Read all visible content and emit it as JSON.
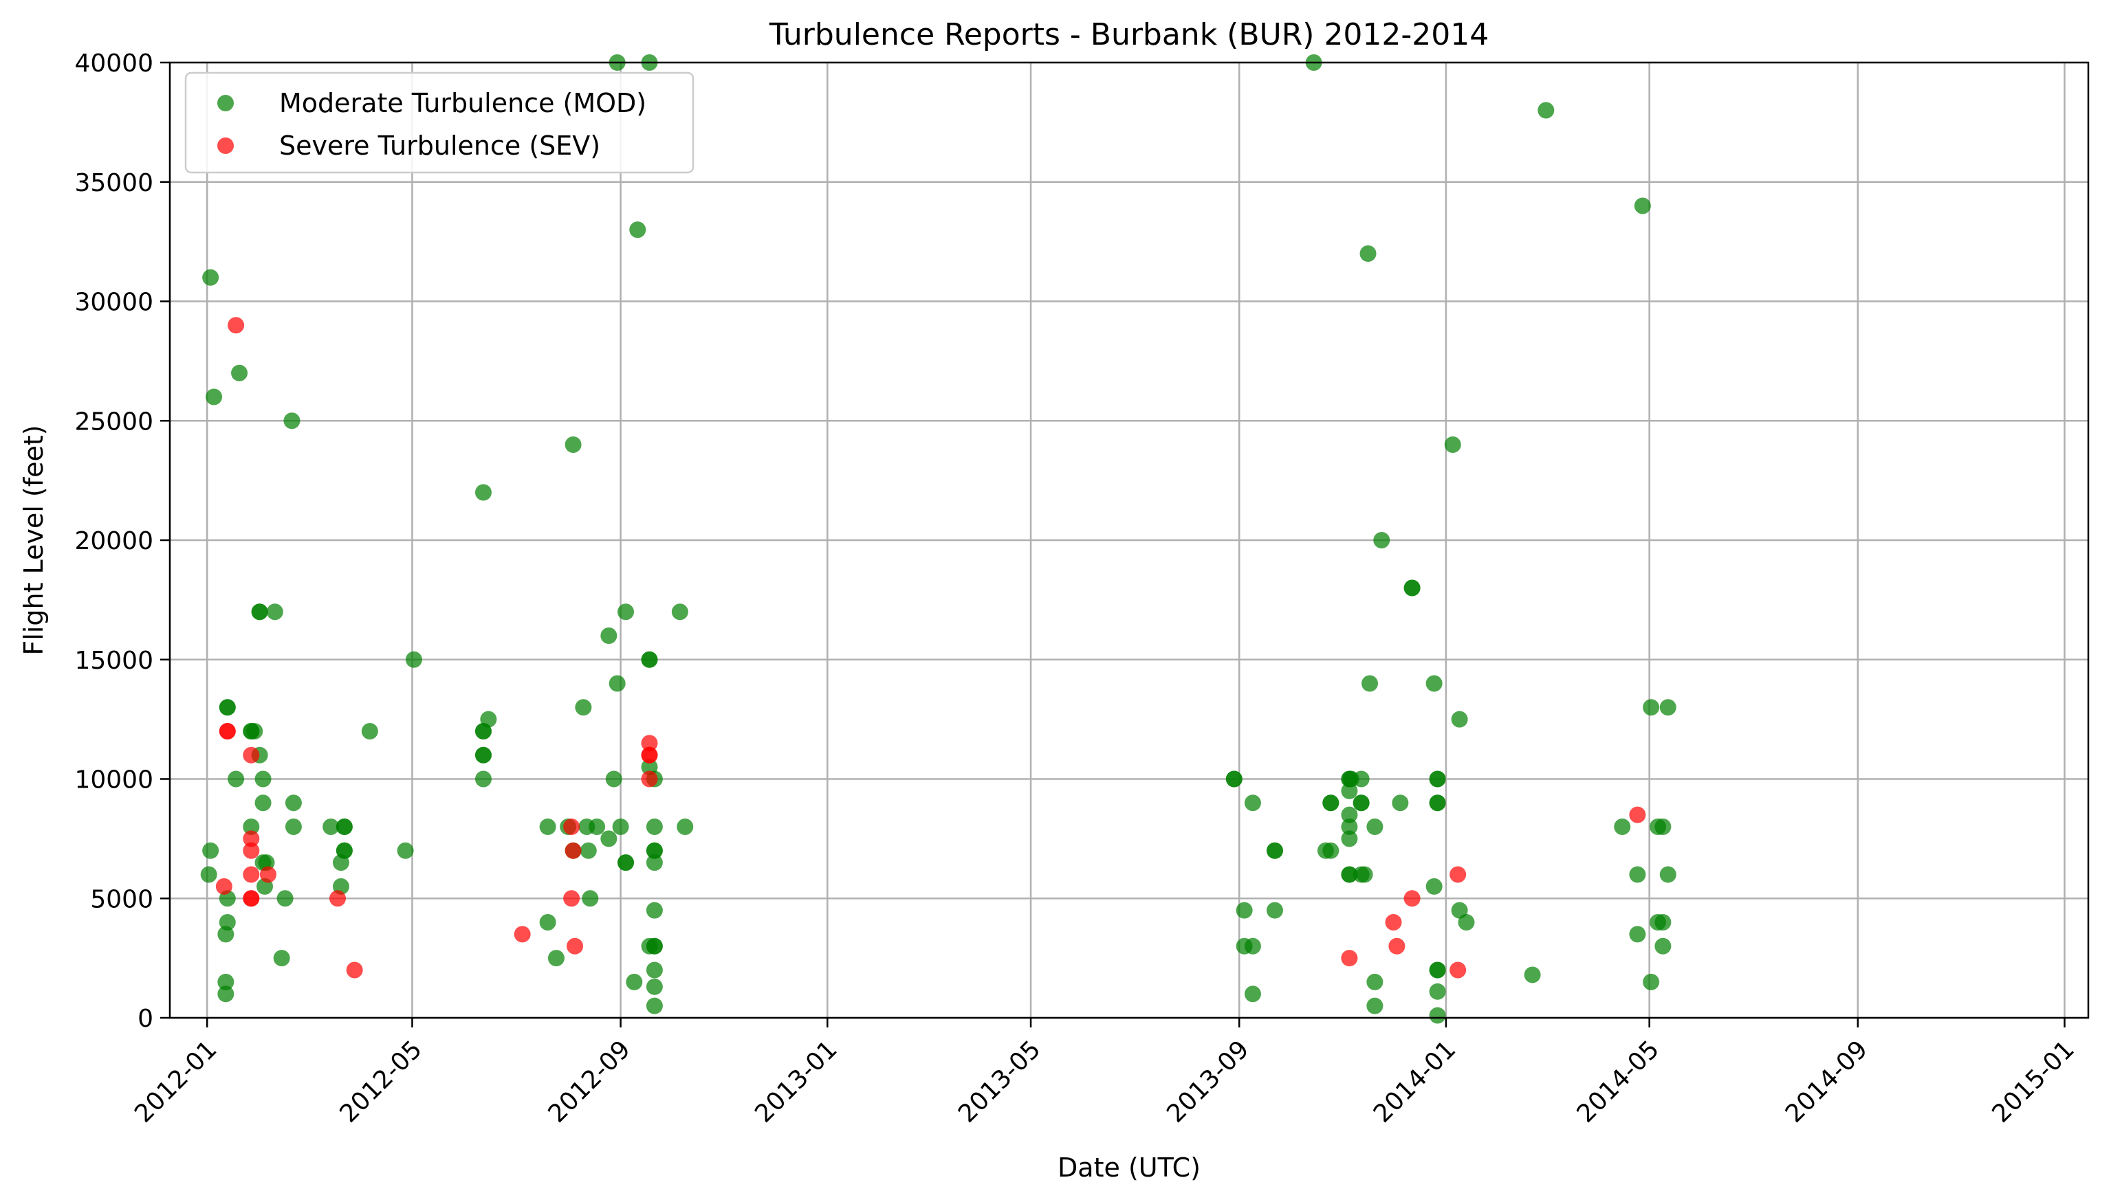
{
  "chart_data": {
    "type": "scatter",
    "title": "Turbulence Reports - Burbank (BUR) 2012-2014",
    "xlabel": "Date (UTC)",
    "ylabel": "Flight Level (feet)",
    "x_type": "date",
    "xlim": [
      "2011-12-10",
      "2015-01-15"
    ],
    "ylim": [
      0,
      40000
    ],
    "grid": true,
    "legend_position": "upper-left",
    "x_ticks": [
      {
        "date": "2012-01-01",
        "label": "2012-01"
      },
      {
        "date": "2012-05-01",
        "label": "2012-05"
      },
      {
        "date": "2012-09-01",
        "label": "2012-09"
      },
      {
        "date": "2013-01-01",
        "label": "2013-01"
      },
      {
        "date": "2013-05-01",
        "label": "2013-05"
      },
      {
        "date": "2013-09-01",
        "label": "2013-09"
      },
      {
        "date": "2014-01-01",
        "label": "2014-01"
      },
      {
        "date": "2014-05-01",
        "label": "2014-05"
      },
      {
        "date": "2014-09-01",
        "label": "2014-09"
      },
      {
        "date": "2015-01-01",
        "label": "2015-01"
      }
    ],
    "y_ticks": [
      0,
      5000,
      10000,
      15000,
      20000,
      25000,
      30000,
      35000,
      40000
    ],
    "series": [
      {
        "name": "Moderate Turbulence (MOD)",
        "color": "#008000",
        "points": [
          [
            "2012-01-03",
            31000
          ],
          [
            "2012-01-03",
            7000
          ],
          [
            "2012-01-02",
            6000
          ],
          [
            "2012-01-05",
            26000
          ],
          [
            "2012-01-13",
            13000
          ],
          [
            "2012-01-13",
            13000
          ],
          [
            "2012-01-13",
            5000
          ],
          [
            "2012-01-13",
            4000
          ],
          [
            "2012-01-12",
            3500
          ],
          [
            "2012-01-12",
            1500
          ],
          [
            "2012-01-12",
            1000
          ],
          [
            "2012-01-18",
            10000
          ],
          [
            "2012-01-20",
            27000
          ],
          [
            "2012-01-27",
            12000
          ],
          [
            "2012-01-27",
            12000
          ],
          [
            "2012-01-27",
            8000
          ],
          [
            "2012-01-29",
            12000
          ],
          [
            "2012-02-01",
            11000
          ],
          [
            "2012-02-01",
            17000
          ],
          [
            "2012-02-01",
            17000
          ],
          [
            "2012-02-03",
            10000
          ],
          [
            "2012-02-03",
            9000
          ],
          [
            "2012-02-03",
            6500
          ],
          [
            "2012-02-04",
            5500
          ],
          [
            "2012-02-05",
            6500
          ],
          [
            "2012-02-10",
            17000
          ],
          [
            "2012-02-14",
            2500
          ],
          [
            "2012-02-16",
            5000
          ],
          [
            "2012-02-20",
            25000
          ],
          [
            "2012-02-21",
            9000
          ],
          [
            "2012-02-21",
            8000
          ],
          [
            "2012-03-14",
            8000
          ],
          [
            "2012-03-20",
            6500
          ],
          [
            "2012-03-20",
            5500
          ],
          [
            "2012-03-22",
            8000
          ],
          [
            "2012-03-22",
            8000
          ],
          [
            "2012-03-22",
            7000
          ],
          [
            "2012-03-22",
            7000
          ],
          [
            "2012-04-06",
            12000
          ],
          [
            "2012-04-27",
            7000
          ],
          [
            "2012-05-02",
            15000
          ],
          [
            "2012-06-12",
            22000
          ],
          [
            "2012-06-12",
            12000
          ],
          [
            "2012-06-12",
            12000
          ],
          [
            "2012-06-12",
            11000
          ],
          [
            "2012-06-12",
            11000
          ],
          [
            "2012-06-12",
            10000
          ],
          [
            "2012-06-15",
            12500
          ],
          [
            "2012-07-20",
            8000
          ],
          [
            "2012-07-20",
            4000
          ],
          [
            "2012-07-25",
            2500
          ],
          [
            "2012-08-01",
            8000
          ],
          [
            "2012-08-04",
            24000
          ],
          [
            "2012-08-04",
            7000
          ],
          [
            "2012-08-10",
            13000
          ],
          [
            "2012-08-12",
            8000
          ],
          [
            "2012-08-13",
            7000
          ],
          [
            "2012-08-14",
            5000
          ],
          [
            "2012-08-18",
            8000
          ],
          [
            "2012-08-25",
            16000
          ],
          [
            "2012-08-25",
            7500
          ],
          [
            "2012-08-28",
            10000
          ],
          [
            "2012-08-30",
            40000
          ],
          [
            "2012-08-30",
            14000
          ],
          [
            "2012-09-01",
            8000
          ],
          [
            "2012-09-04",
            17000
          ],
          [
            "2012-09-04",
            6500
          ],
          [
            "2012-09-04",
            6500
          ],
          [
            "2012-09-09",
            1500
          ],
          [
            "2012-09-11",
            33000
          ],
          [
            "2012-09-18",
            40000
          ],
          [
            "2012-09-18",
            15000
          ],
          [
            "2012-09-18",
            15000
          ],
          [
            "2012-09-18",
            10500
          ],
          [
            "2012-09-18",
            3000
          ],
          [
            "2012-09-21",
            10000
          ],
          [
            "2012-09-21",
            8000
          ],
          [
            "2012-09-21",
            7000
          ],
          [
            "2012-09-21",
            7000
          ],
          [
            "2012-09-21",
            6500
          ],
          [
            "2012-09-21",
            4500
          ],
          [
            "2012-09-21",
            3000
          ],
          [
            "2012-09-21",
            3000
          ],
          [
            "2012-09-21",
            2000
          ],
          [
            "2012-09-21",
            1300
          ],
          [
            "2012-09-21",
            500
          ],
          [
            "2012-10-06",
            17000
          ],
          [
            "2012-10-09",
            8000
          ],
          [
            "2013-08-29",
            10000
          ],
          [
            "2013-08-29",
            10000
          ],
          [
            "2013-09-04",
            4500
          ],
          [
            "2013-09-04",
            3000
          ],
          [
            "2013-09-09",
            9000
          ],
          [
            "2013-09-09",
            3000
          ],
          [
            "2013-09-09",
            1000
          ],
          [
            "2013-09-22",
            7000
          ],
          [
            "2013-09-22",
            7000
          ],
          [
            "2013-09-22",
            4500
          ],
          [
            "2013-10-15",
            40000
          ],
          [
            "2013-10-22",
            7000
          ],
          [
            "2013-10-25",
            9000
          ],
          [
            "2013-10-25",
            9000
          ],
          [
            "2013-10-25",
            7000
          ],
          [
            "2013-11-05",
            10000
          ],
          [
            "2013-11-05",
            10000
          ],
          [
            "2013-11-05",
            9500
          ],
          [
            "2013-11-05",
            8500
          ],
          [
            "2013-11-05",
            8000
          ],
          [
            "2013-11-05",
            7500
          ],
          [
            "2013-11-05",
            6000
          ],
          [
            "2013-11-05",
            6000
          ],
          [
            "2013-11-06",
            10000
          ],
          [
            "2013-11-12",
            10000
          ],
          [
            "2013-11-12",
            9000
          ],
          [
            "2013-11-12",
            9000
          ],
          [
            "2013-11-12",
            6000
          ],
          [
            "2013-11-14",
            6000
          ],
          [
            "2013-11-16",
            32000
          ],
          [
            "2013-11-17",
            14000
          ],
          [
            "2013-11-20",
            8000
          ],
          [
            "2013-11-20",
            1500
          ],
          [
            "2013-11-20",
            500
          ],
          [
            "2013-11-24",
            20000
          ],
          [
            "2013-12-05",
            9000
          ],
          [
            "2013-12-12",
            18000
          ],
          [
            "2013-12-12",
            18000
          ],
          [
            "2013-12-25",
            14000
          ],
          [
            "2013-12-25",
            5500
          ],
          [
            "2013-12-27",
            10000
          ],
          [
            "2013-12-27",
            10000
          ],
          [
            "2013-12-27",
            9000
          ],
          [
            "2013-12-27",
            9000
          ],
          [
            "2013-12-27",
            2000
          ],
          [
            "2013-12-27",
            2000
          ],
          [
            "2013-12-27",
            1100
          ],
          [
            "2013-12-27",
            100
          ],
          [
            "2014-01-05",
            24000
          ],
          [
            "2014-01-09",
            12500
          ],
          [
            "2014-01-09",
            4500
          ],
          [
            "2014-01-13",
            4000
          ],
          [
            "2014-02-21",
            1800
          ],
          [
            "2014-03-01",
            38000
          ],
          [
            "2014-04-15",
            8000
          ],
          [
            "2014-04-24",
            6000
          ],
          [
            "2014-04-24",
            3500
          ],
          [
            "2014-04-27",
            34000
          ],
          [
            "2014-05-02",
            13000
          ],
          [
            "2014-05-02",
            1500
          ],
          [
            "2014-05-06",
            8000
          ],
          [
            "2014-05-09",
            8000
          ],
          [
            "2014-05-06",
            4000
          ],
          [
            "2014-05-09",
            4000
          ],
          [
            "2014-05-09",
            3000
          ],
          [
            "2014-05-12",
            13000
          ],
          [
            "2014-05-12",
            6000
          ]
        ]
      },
      {
        "name": "Severe Turbulence (SEV)",
        "color": "#ff0000",
        "points": [
          [
            "2012-01-18",
            29000
          ],
          [
            "2012-01-13",
            12000
          ],
          [
            "2012-01-13",
            12000
          ],
          [
            "2012-01-11",
            5500
          ],
          [
            "2012-01-27",
            11000
          ],
          [
            "2012-01-27",
            7500
          ],
          [
            "2012-01-27",
            7000
          ],
          [
            "2012-01-27",
            6000
          ],
          [
            "2012-01-27",
            5000
          ],
          [
            "2012-01-27",
            5000
          ],
          [
            "2012-02-06",
            6000
          ],
          [
            "2012-03-18",
            5000
          ],
          [
            "2012-03-28",
            2000
          ],
          [
            "2012-07-05",
            3500
          ],
          [
            "2012-08-03",
            8000
          ],
          [
            "2012-08-03",
            5000
          ],
          [
            "2012-08-04",
            7000
          ],
          [
            "2012-08-05",
            3000
          ],
          [
            "2012-09-18",
            11500
          ],
          [
            "2012-09-18",
            11000
          ],
          [
            "2012-09-18",
            11000
          ],
          [
            "2012-09-18",
            10000
          ],
          [
            "2013-11-05",
            2500
          ],
          [
            "2013-12-01",
            4000
          ],
          [
            "2013-12-03",
            3000
          ],
          [
            "2013-12-12",
            5000
          ],
          [
            "2014-01-08",
            6000
          ],
          [
            "2014-01-08",
            2000
          ],
          [
            "2014-04-24",
            8500
          ]
        ]
      }
    ]
  }
}
